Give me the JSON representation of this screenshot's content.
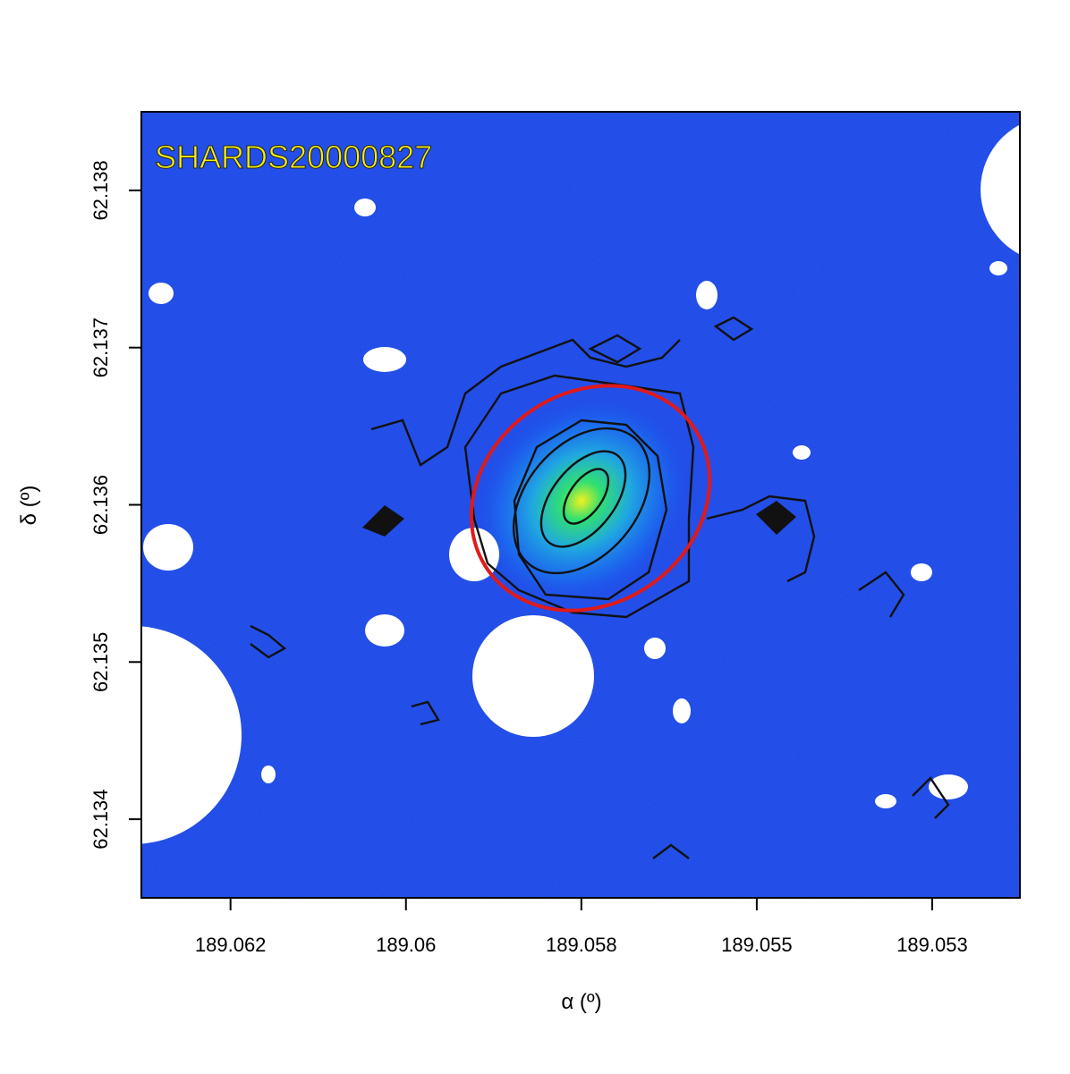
{
  "chart_data": {
    "type": "image",
    "title": "SHARDS20000827",
    "xlabel": "α (º)",
    "ylabel": "δ (º)",
    "xlim": [
      189.06371,
      189.05169
    ],
    "ylim": [
      62.1335,
      62.1385
    ],
    "xticks": [
      {
        "value": 189.06249,
        "label": "189.062"
      },
      {
        "value": 189.06009,
        "label": "189.06"
      },
      {
        "value": 189.05769,
        "label": "189.058"
      },
      {
        "value": 189.05529,
        "label": "189.055"
      },
      {
        "value": 189.05289,
        "label": "189.053"
      }
    ],
    "yticks": [
      62.134,
      62.135,
      62.136,
      62.137,
      62.138
    ]
  }
}
